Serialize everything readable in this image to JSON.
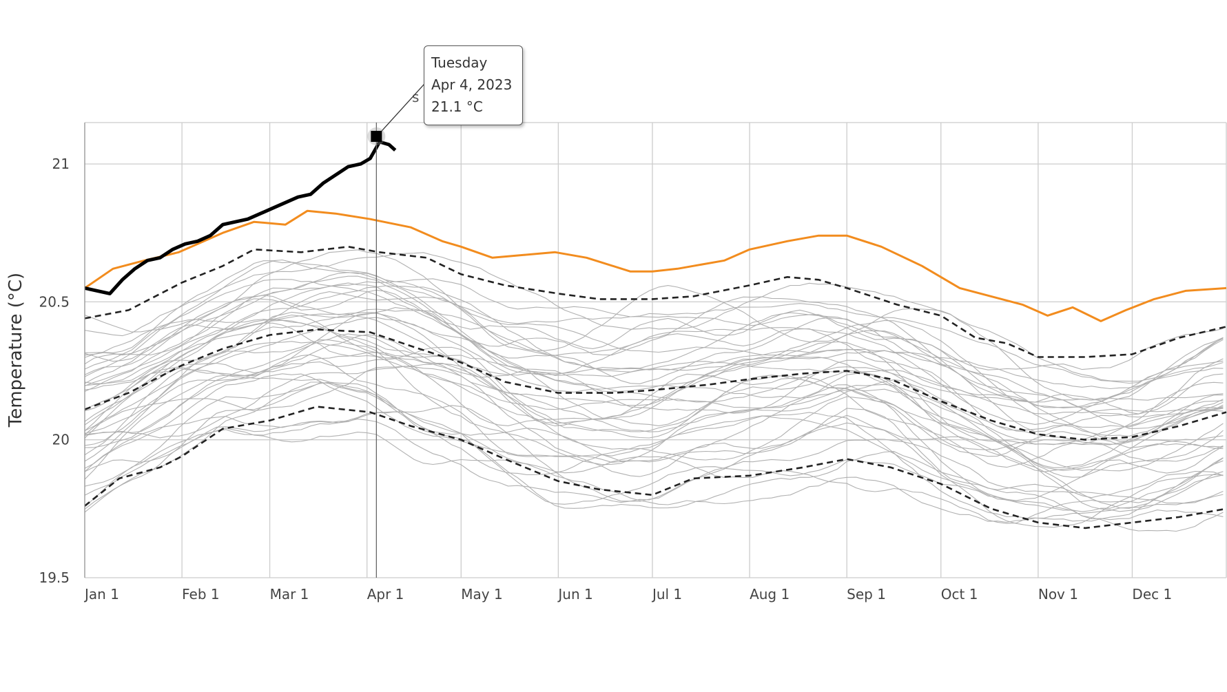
{
  "chart_data": {
    "type": "line",
    "title": "",
    "xlabel": "",
    "ylabel": "Temperature (°C)",
    "ylim": [
      19.5,
      21.15
    ],
    "yticks": [
      19.5,
      20,
      20.5,
      21
    ],
    "ytick_labels": [
      "19.5",
      "20",
      "20.5",
      "21"
    ],
    "xlim": [
      "Jan 1",
      "Dec 31"
    ],
    "xticks": [
      "Jan 1",
      "Feb 1",
      "Mar 1",
      "Apr 1",
      "May 1",
      "Jun 1",
      "Jul 1",
      "Aug 1",
      "Sep 1",
      "Oct 1",
      "Nov 1",
      "Dec 1"
    ],
    "x_day_of_year": [
      1,
      32,
      60,
      91,
      121,
      152,
      182,
      213,
      244,
      274,
      305,
      335
    ],
    "grid": true,
    "legend": "none",
    "colors": {
      "current_year": "#000000",
      "previous_year": "#f28c1e",
      "statistics": "#222222",
      "other_years": "#b0b0b0",
      "grid": "#cccccc"
    },
    "series": [
      {
        "role": "current_year",
        "style": "solid-thick",
        "points": [
          [
            1,
            20.55
          ],
          [
            5,
            20.54
          ],
          [
            9,
            20.53
          ],
          [
            13,
            20.58
          ],
          [
            17,
            20.62
          ],
          [
            21,
            20.65
          ],
          [
            25,
            20.66
          ],
          [
            29,
            20.69
          ],
          [
            33,
            20.71
          ],
          [
            37,
            20.72
          ],
          [
            41,
            20.74
          ],
          [
            45,
            20.78
          ],
          [
            49,
            20.79
          ],
          [
            53,
            20.8
          ],
          [
            57,
            20.82
          ],
          [
            61,
            20.84
          ],
          [
            65,
            20.86
          ],
          [
            69,
            20.88
          ],
          [
            73,
            20.89
          ],
          [
            77,
            20.93
          ],
          [
            81,
            20.96
          ],
          [
            85,
            20.99
          ],
          [
            89,
            21.0
          ],
          [
            92,
            21.02
          ],
          [
            94,
            21.06
          ],
          [
            95,
            21.08
          ],
          [
            98,
            21.07
          ],
          [
            100,
            21.05
          ]
        ]
      },
      {
        "role": "previous_year",
        "style": "solid-orange",
        "points": [
          [
            1,
            20.55
          ],
          [
            10,
            20.62
          ],
          [
            20,
            20.65
          ],
          [
            31,
            20.68
          ],
          [
            45,
            20.75
          ],
          [
            55,
            20.79
          ],
          [
            65,
            20.78
          ],
          [
            72,
            20.83
          ],
          [
            81,
            20.82
          ],
          [
            92,
            20.8
          ],
          [
            105,
            20.77
          ],
          [
            115,
            20.72
          ],
          [
            121,
            20.7
          ],
          [
            131,
            20.66
          ],
          [
            141,
            20.67
          ],
          [
            151,
            20.68
          ],
          [
            161,
            20.66
          ],
          [
            175,
            20.61
          ],
          [
            182,
            20.61
          ],
          [
            190,
            20.62
          ],
          [
            205,
            20.65
          ],
          [
            213,
            20.69
          ],
          [
            225,
            20.72
          ],
          [
            235,
            20.74
          ],
          [
            244,
            20.74
          ],
          [
            255,
            20.7
          ],
          [
            268,
            20.63
          ],
          [
            280,
            20.55
          ],
          [
            290,
            20.52
          ],
          [
            300,
            20.49
          ],
          [
            308,
            20.45
          ],
          [
            316,
            20.48
          ],
          [
            325,
            20.43
          ],
          [
            333,
            20.47
          ],
          [
            342,
            20.51
          ],
          [
            352,
            20.54
          ],
          [
            365,
            20.55
          ]
        ]
      },
      {
        "role": "statistics",
        "name_hint": "upper",
        "style": "dashed",
        "points": [
          [
            1,
            20.44
          ],
          [
            15,
            20.47
          ],
          [
            32,
            20.57
          ],
          [
            45,
            20.63
          ],
          [
            55,
            20.69
          ],
          [
            70,
            20.68
          ],
          [
            85,
            20.7
          ],
          [
            95,
            20.68
          ],
          [
            110,
            20.66
          ],
          [
            121,
            20.6
          ],
          [
            135,
            20.56
          ],
          [
            152,
            20.53
          ],
          [
            165,
            20.51
          ],
          [
            182,
            20.51
          ],
          [
            195,
            20.52
          ],
          [
            213,
            20.56
          ],
          [
            225,
            20.59
          ],
          [
            235,
            20.58
          ],
          [
            244,
            20.55
          ],
          [
            260,
            20.49
          ],
          [
            274,
            20.45
          ],
          [
            285,
            20.37
          ],
          [
            295,
            20.35
          ],
          [
            305,
            20.3
          ],
          [
            320,
            20.3
          ],
          [
            335,
            20.31
          ],
          [
            350,
            20.37
          ],
          [
            365,
            20.41
          ]
        ]
      },
      {
        "role": "statistics",
        "name_hint": "mean",
        "style": "dashed",
        "points": [
          [
            1,
            20.11
          ],
          [
            15,
            20.17
          ],
          [
            32,
            20.27
          ],
          [
            45,
            20.33
          ],
          [
            60,
            20.38
          ],
          [
            75,
            20.4
          ],
          [
            92,
            20.39
          ],
          [
            105,
            20.34
          ],
          [
            121,
            20.28
          ],
          [
            135,
            20.21
          ],
          [
            152,
            20.17
          ],
          [
            170,
            20.17
          ],
          [
            182,
            20.18
          ],
          [
            200,
            20.2
          ],
          [
            213,
            20.22
          ],
          [
            230,
            20.24
          ],
          [
            244,
            20.25
          ],
          [
            258,
            20.22
          ],
          [
            274,
            20.14
          ],
          [
            290,
            20.07
          ],
          [
            305,
            20.02
          ],
          [
            320,
            20.0
          ],
          [
            335,
            20.01
          ],
          [
            350,
            20.05
          ],
          [
            365,
            20.1
          ]
        ]
      },
      {
        "role": "statistics",
        "name_hint": "lower",
        "style": "dashed",
        "points": [
          [
            1,
            19.76
          ],
          [
            12,
            19.86
          ],
          [
            25,
            19.9
          ],
          [
            32,
            19.94
          ],
          [
            45,
            20.04
          ],
          [
            60,
            20.07
          ],
          [
            75,
            20.12
          ],
          [
            92,
            20.1
          ],
          [
            105,
            20.05
          ],
          [
            121,
            20.0
          ],
          [
            135,
            19.93
          ],
          [
            152,
            19.85
          ],
          [
            165,
            19.82
          ],
          [
            182,
            19.8
          ],
          [
            195,
            19.86
          ],
          [
            213,
            19.87
          ],
          [
            230,
            19.9
          ],
          [
            244,
            19.93
          ],
          [
            258,
            19.9
          ],
          [
            274,
            19.84
          ],
          [
            290,
            19.75
          ],
          [
            305,
            19.7
          ],
          [
            320,
            19.68
          ],
          [
            335,
            19.7
          ],
          [
            350,
            19.72
          ],
          [
            365,
            19.75
          ]
        ]
      }
    ],
    "background_years_count": 40,
    "highlight": {
      "x_day": 94,
      "y": 21.1,
      "tooltip": {
        "day": "Tuesday",
        "date": "Apr 4, 2023",
        "value": "21.1 °C"
      }
    },
    "partial_label": "s"
  }
}
